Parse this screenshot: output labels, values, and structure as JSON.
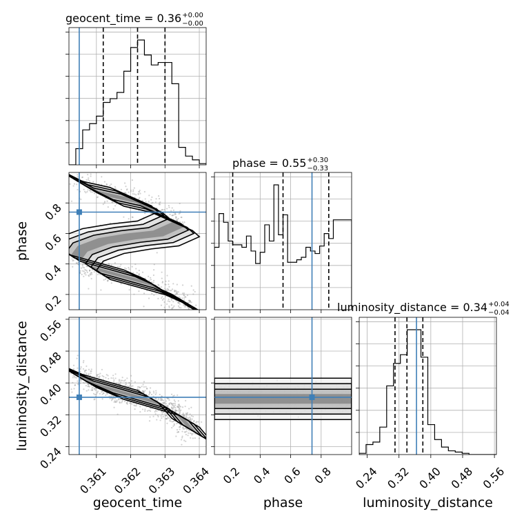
{
  "chart_data": {
    "type": "corner",
    "parameters": [
      "geocent_time",
      "phase",
      "luminosity_distance"
    ],
    "axis_labels": {
      "geocent_time": "geocent_time",
      "phase": "phase",
      "luminosity_distance": "luminosity_distance"
    },
    "ranges": {
      "geocent_time": [
        0.3602,
        0.3642
      ],
      "phase": [
        0.1,
        1.0
      ],
      "luminosity_distance": [
        0.22,
        0.565
      ]
    },
    "ticks": {
      "geocent_time": [
        0.361,
        0.362,
        0.363,
        0.364
      ],
      "phase": [
        0.2,
        0.4,
        0.6,
        0.8
      ],
      "luminosity_distance": [
        0.24,
        0.32,
        0.4,
        0.48,
        0.56
      ]
    },
    "tick_labels": {
      "geocent_time": [
        "0.361",
        "0.362",
        "0.363",
        "0.364"
      ],
      "phase_x": [
        "0.2",
        "0.4",
        "0.6",
        "0.8"
      ],
      "phase_y": [
        "0.2",
        "0.4",
        "0.6",
        "0.8"
      ],
      "luminosity_distance_x": [
        "0.24",
        "0.32",
        "0.40",
        "0.48",
        "0.56"
      ],
      "luminosity_distance_y": [
        "0.24",
        "0.32",
        "0.40",
        "0.48",
        "0.56"
      ]
    },
    "truths": {
      "geocent_time": 0.3605,
      "phase": 0.74,
      "luminosity_distance": 0.364
    },
    "titles": [
      {
        "param": "geocent_time",
        "name": "geocent_time",
        "value": "0.36",
        "plus": "+0.00",
        "minus": "−0.00"
      },
      {
        "param": "phase",
        "name": "phase",
        "value": "0.55",
        "plus": "+0.30",
        "minus": "−0.33"
      },
      {
        "param": "luminosity_distance",
        "name": "luminosity_distance",
        "value": "0.34",
        "plus": "+0.04",
        "minus": "−0.04"
      }
    ],
    "histograms": {
      "geocent_time": {
        "bin_edges": [
          0.3602,
          0.3604,
          0.3606,
          0.3608,
          0.361,
          0.3612,
          0.3614,
          0.3616,
          0.3618,
          0.362,
          0.3622,
          0.3624,
          0.3626,
          0.3628,
          0.363,
          0.3632,
          0.3634,
          0.3636,
          0.3638,
          0.364,
          0.3642
        ],
        "counts": [
          0,
          0.13,
          0.28,
          0.33,
          0.39,
          0.5,
          0.53,
          0.58,
          0.75,
          0.94,
          1.0,
          0.88,
          0.8,
          0.82,
          0.82,
          0.65,
          0.14,
          0.07,
          0.04,
          0.01
        ],
        "quantiles": [
          0.3612,
          0.3622,
          0.363
        ]
      },
      "phase": {
        "bin_edges": [
          0.1,
          0.13,
          0.16,
          0.19,
          0.22,
          0.25,
          0.28,
          0.31,
          0.34,
          0.37,
          0.4,
          0.43,
          0.46,
          0.49,
          0.52,
          0.55,
          0.58,
          0.61,
          0.64,
          0.67,
          0.7,
          0.73,
          0.76,
          0.79,
          0.82,
          0.85,
          0.88,
          0.91,
          0.94,
          0.97,
          1.0
        ],
        "counts": [
          0.5,
          0.77,
          0.7,
          0.55,
          0.52,
          0.52,
          0.5,
          0.59,
          0.47,
          0.37,
          0.46,
          0.68,
          0.55,
          1.0,
          0.6,
          0.76,
          0.38,
          0.38,
          0.4,
          0.42,
          0.5,
          0.47,
          0.45,
          0.51,
          0.61,
          0.57,
          0.72,
          0.72,
          0.72,
          0.72
        ],
        "quantiles": [
          0.22,
          0.55,
          0.85
        ]
      },
      "luminosity_distance": {
        "bin_edges": [
          0.22,
          0.2372,
          0.2545,
          0.2717,
          0.289,
          0.3062,
          0.3235,
          0.3407,
          0.358,
          0.3752,
          0.3925,
          0.4097,
          0.427,
          0.4442,
          0.4615,
          0.4788,
          0.496,
          0.5132,
          0.5305,
          0.5477,
          0.565
        ],
        "counts": [
          0.01,
          0.08,
          0.1,
          0.22,
          0.55,
          0.73,
          0.8,
          1.0,
          1.0,
          0.78,
          0.24,
          0.12,
          0.06,
          0.03,
          0.02,
          0.01,
          0,
          0,
          0,
          0
        ],
        "quantiles": [
          0.31,
          0.34,
          0.38
        ]
      }
    },
    "scatter_cloud": [
      {
        "pair": [
          "geocent_time",
          "phase"
        ],
        "ridge": [
          [
            0.3604,
            0.95
          ],
          [
            0.3612,
            0.86
          ],
          [
            0.362,
            0.82
          ],
          [
            0.3626,
            0.76
          ],
          [
            0.3632,
            0.7
          ],
          [
            0.3634,
            0.66
          ],
          [
            0.3628,
            0.6
          ],
          [
            0.362,
            0.58
          ],
          [
            0.3612,
            0.55
          ],
          [
            0.3606,
            0.5
          ],
          [
            0.3604,
            0.44
          ],
          [
            0.3608,
            0.38
          ],
          [
            0.3616,
            0.33
          ],
          [
            0.3624,
            0.28
          ],
          [
            0.363,
            0.22
          ],
          [
            0.3634,
            0.16
          ],
          [
            0.3638,
            0.12
          ]
        ]
      },
      {
        "pair": [
          "geocent_time",
          "luminosity_distance"
        ],
        "ridge": [
          [
            0.3604,
            0.42
          ],
          [
            0.3612,
            0.39
          ],
          [
            0.362,
            0.37
          ],
          [
            0.3628,
            0.35
          ],
          [
            0.3634,
            0.32
          ],
          [
            0.3638,
            0.28
          ]
        ]
      },
      {
        "pair": [
          "phase",
          "luminosity_distance"
        ],
        "ridge": [
          [
            0.1,
            0.36
          ],
          [
            0.3,
            0.36
          ],
          [
            0.5,
            0.36
          ],
          [
            0.7,
            0.36
          ],
          [
            0.9,
            0.36
          ],
          [
            1.0,
            0.36
          ]
        ]
      }
    ]
  }
}
